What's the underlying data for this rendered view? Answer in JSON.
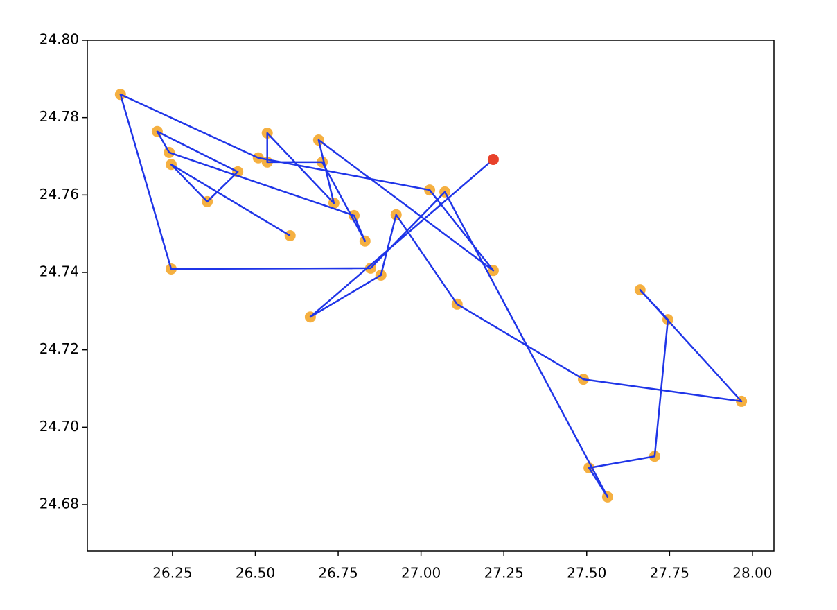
{
  "chart_data": {
    "type": "line",
    "x": [
      27.218,
      26.666,
      26.879,
      26.925,
      27.109,
      27.49,
      27.967,
      27.661,
      27.745,
      27.705,
      27.507,
      27.563,
      27.072,
      26.848,
      26.246,
      26.093,
      26.509,
      27.026,
      27.218,
      26.691,
      26.737,
      26.536,
      26.536,
      26.702,
      26.831,
      26.798,
      26.24,
      26.204,
      26.447,
      26.355,
      26.246,
      26.605
    ],
    "values": [
      24.7692,
      24.7285,
      24.7393,
      24.7549,
      24.7318,
      24.7124,
      24.7067,
      24.7355,
      24.7278,
      24.6925,
      24.6895,
      24.682,
      24.7608,
      24.7411,
      24.7409,
      24.786,
      24.7696,
      24.7613,
      24.7405,
      24.7742,
      24.7579,
      24.776,
      24.7685,
      24.7685,
      24.7481,
      24.7547,
      24.771,
      24.7764,
      24.766,
      24.7583,
      24.7679,
      24.7495
    ],
    "line_color": "#1f35e8",
    "marker_color": "#f5b041",
    "start_color": "#e8412a",
    "xlim": [
      25.993,
      28.065
    ],
    "ylim": [
      24.668,
      24.8
    ],
    "xticks": [
      26.25,
      {
        "value": 26.5,
        "label": "26.50"
      },
      26.75,
      {
        "value": 27,
        "label": "27.00"
      },
      27.25,
      {
        "value": 27.5,
        "label": "27.50"
      },
      27.75,
      {
        "value": 28,
        "label": "28.00"
      }
    ],
    "yticks": [
      24.68,
      {
        "value": 24.7,
        "label": "24.70"
      },
      24.72,
      24.74,
      24.76,
      24.78,
      {
        "value": 24.8,
        "label": "24.80"
      }
    ]
  }
}
